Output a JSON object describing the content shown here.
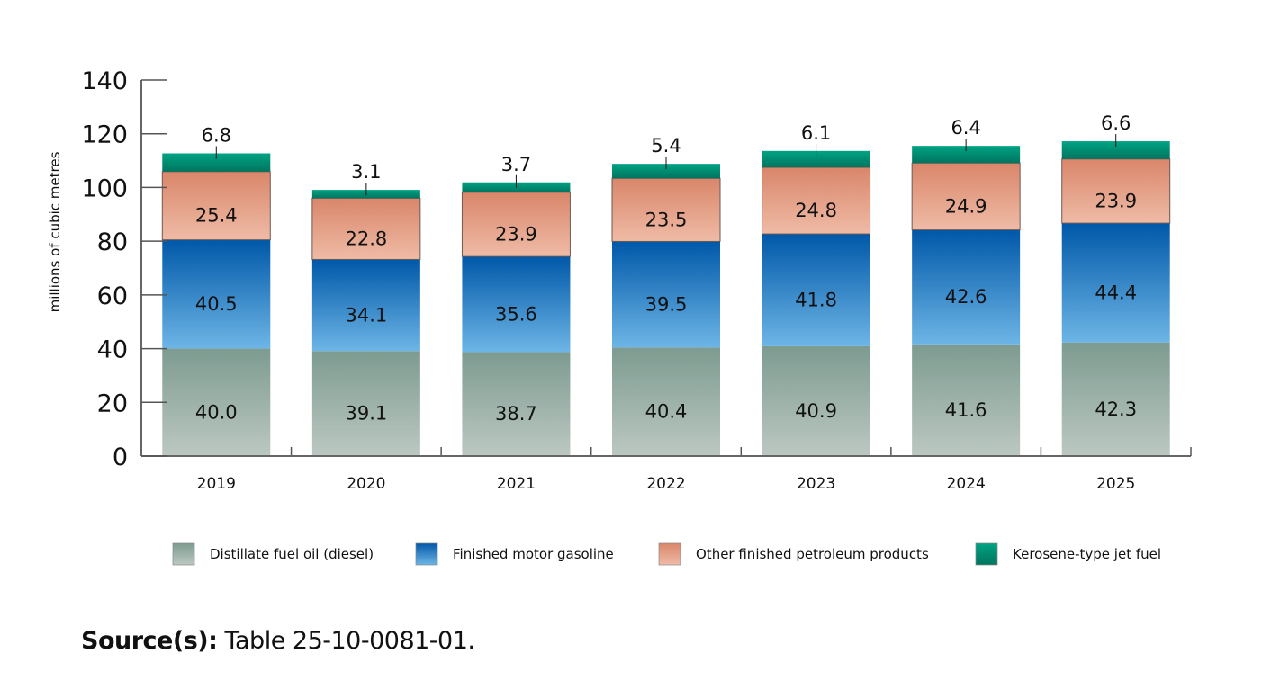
{
  "chart_data": {
    "type": "bar",
    "stacked": true,
    "title": "",
    "xlabel": "",
    "ylabel": "millions of cubic metres",
    "ylim": [
      0,
      140
    ],
    "yticks": [
      0,
      20,
      40,
      60,
      80,
      100,
      120,
      140
    ],
    "grid": false,
    "legend_position": "bottom",
    "categories": [
      "2019",
      "2020",
      "2021",
      "2022",
      "2023",
      "2024",
      "2025"
    ],
    "series": [
      {
        "name": "Distillate fuel oil (diesel)",
        "color_top": "#7d9b90",
        "color_bottom": "#bcc8c2",
        "values": [
          40.0,
          39.1,
          38.7,
          40.4,
          40.9,
          41.6,
          42.3
        ]
      },
      {
        "name": "Finished motor gasoline",
        "color_top": "#0058a8",
        "color_bottom": "#6db5e6",
        "values": [
          40.5,
          34.1,
          35.6,
          39.5,
          41.8,
          42.6,
          44.4
        ]
      },
      {
        "name": "Other finished petroleum products",
        "color_top": "#d9866a",
        "color_bottom": "#efbba6",
        "values": [
          25.4,
          22.8,
          23.9,
          23.5,
          24.8,
          24.9,
          23.9
        ]
      },
      {
        "name": "Kerosene-type jet fuel",
        "color_top": "#00a384",
        "color_bottom": "#00755e",
        "values": [
          6.8,
          3.1,
          3.7,
          5.4,
          6.1,
          6.4,
          6.6
        ]
      }
    ]
  },
  "source": {
    "label": "Source(s):",
    "text": " Table 25-10-0081-01."
  }
}
